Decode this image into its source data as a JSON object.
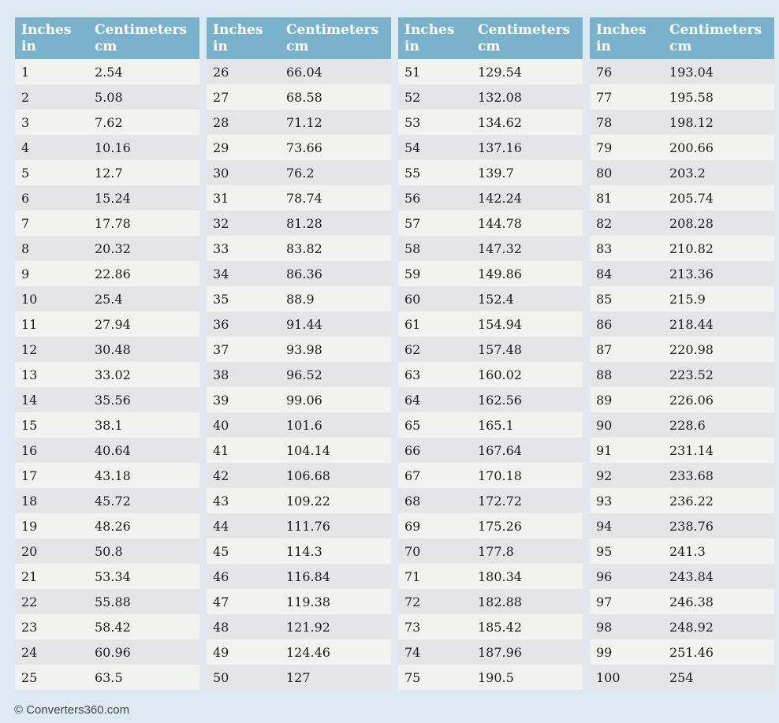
{
  "page": {
    "background_color": "#ddeaf2",
    "header_color": "#7ab2cb",
    "row_light_color": "#f2f2f0",
    "row_dark_color": "#e5e5e8",
    "text_color": "#1c1c1c",
    "header_text_color": "#ffffff"
  },
  "header": {
    "col1_line1": "Inches",
    "col1_line2": "in",
    "col2_line1": "Centimeters",
    "col2_line2": "cm"
  },
  "footer": {
    "copyright": "© Converters360.com"
  },
  "tables": [
    {
      "rows": [
        [
          "1",
          "2.54"
        ],
        [
          "2",
          "5.08"
        ],
        [
          "3",
          "7.62"
        ],
        [
          "4",
          "10.16"
        ],
        [
          "5",
          "12.7"
        ],
        [
          "6",
          "15.24"
        ],
        [
          "7",
          "17.78"
        ],
        [
          "8",
          "20.32"
        ],
        [
          "9",
          "22.86"
        ],
        [
          "10",
          "25.4"
        ],
        [
          "11",
          "27.94"
        ],
        [
          "12",
          "30.48"
        ],
        [
          "13",
          "33.02"
        ],
        [
          "14",
          "35.56"
        ],
        [
          "15",
          "38.1"
        ],
        [
          "16",
          "40.64"
        ],
        [
          "17",
          "43.18"
        ],
        [
          "18",
          "45.72"
        ],
        [
          "19",
          "48.26"
        ],
        [
          "20",
          "50.8"
        ],
        [
          "21",
          "53.34"
        ],
        [
          "22",
          "55.88"
        ],
        [
          "23",
          "58.42"
        ],
        [
          "24",
          "60.96"
        ],
        [
          "25",
          "63.5"
        ]
      ]
    },
    {
      "rows": [
        [
          "26",
          "66.04"
        ],
        [
          "27",
          "68.58"
        ],
        [
          "28",
          "71.12"
        ],
        [
          "29",
          "73.66"
        ],
        [
          "30",
          "76.2"
        ],
        [
          "31",
          "78.74"
        ],
        [
          "32",
          "81.28"
        ],
        [
          "33",
          "83.82"
        ],
        [
          "34",
          "86.36"
        ],
        [
          "35",
          "88.9"
        ],
        [
          "36",
          "91.44"
        ],
        [
          "37",
          "93.98"
        ],
        [
          "38",
          "96.52"
        ],
        [
          "39",
          "99.06"
        ],
        [
          "40",
          "101.6"
        ],
        [
          "41",
          "104.14"
        ],
        [
          "42",
          "106.68"
        ],
        [
          "43",
          "109.22"
        ],
        [
          "44",
          "111.76"
        ],
        [
          "45",
          "114.3"
        ],
        [
          "46",
          "116.84"
        ],
        [
          "47",
          "119.38"
        ],
        [
          "48",
          "121.92"
        ],
        [
          "49",
          "124.46"
        ],
        [
          "50",
          "127"
        ]
      ]
    },
    {
      "rows": [
        [
          "51",
          "129.54"
        ],
        [
          "52",
          "132.08"
        ],
        [
          "53",
          "134.62"
        ],
        [
          "54",
          "137.16"
        ],
        [
          "55",
          "139.7"
        ],
        [
          "56",
          "142.24"
        ],
        [
          "57",
          "144.78"
        ],
        [
          "58",
          "147.32"
        ],
        [
          "59",
          "149.86"
        ],
        [
          "60",
          "152.4"
        ],
        [
          "61",
          "154.94"
        ],
        [
          "62",
          "157.48"
        ],
        [
          "63",
          "160.02"
        ],
        [
          "64",
          "162.56"
        ],
        [
          "65",
          "165.1"
        ],
        [
          "66",
          "167.64"
        ],
        [
          "67",
          "170.18"
        ],
        [
          "68",
          "172.72"
        ],
        [
          "69",
          "175.26"
        ],
        [
          "70",
          "177.8"
        ],
        [
          "71",
          "180.34"
        ],
        [
          "72",
          "182.88"
        ],
        [
          "73",
          "185.42"
        ],
        [
          "74",
          "187.96"
        ],
        [
          "75",
          "190.5"
        ]
      ]
    },
    {
      "rows": [
        [
          "76",
          "193.04"
        ],
        [
          "77",
          "195.58"
        ],
        [
          "78",
          "198.12"
        ],
        [
          "79",
          "200.66"
        ],
        [
          "80",
          "203.2"
        ],
        [
          "81",
          "205.74"
        ],
        [
          "82",
          "208.28"
        ],
        [
          "83",
          "210.82"
        ],
        [
          "84",
          "213.36"
        ],
        [
          "85",
          "215.9"
        ],
        [
          "86",
          "218.44"
        ],
        [
          "87",
          "220.98"
        ],
        [
          "88",
          "223.52"
        ],
        [
          "89",
          "226.06"
        ],
        [
          "90",
          "228.6"
        ],
        [
          "91",
          "231.14"
        ],
        [
          "92",
          "233.68"
        ],
        [
          "93",
          "236.22"
        ],
        [
          "94",
          "238.76"
        ],
        [
          "95",
          "241.3"
        ],
        [
          "96",
          "243.84"
        ],
        [
          "97",
          "246.38"
        ],
        [
          "98",
          "248.92"
        ],
        [
          "99",
          "251.46"
        ],
        [
          "100",
          "254"
        ]
      ]
    }
  ]
}
